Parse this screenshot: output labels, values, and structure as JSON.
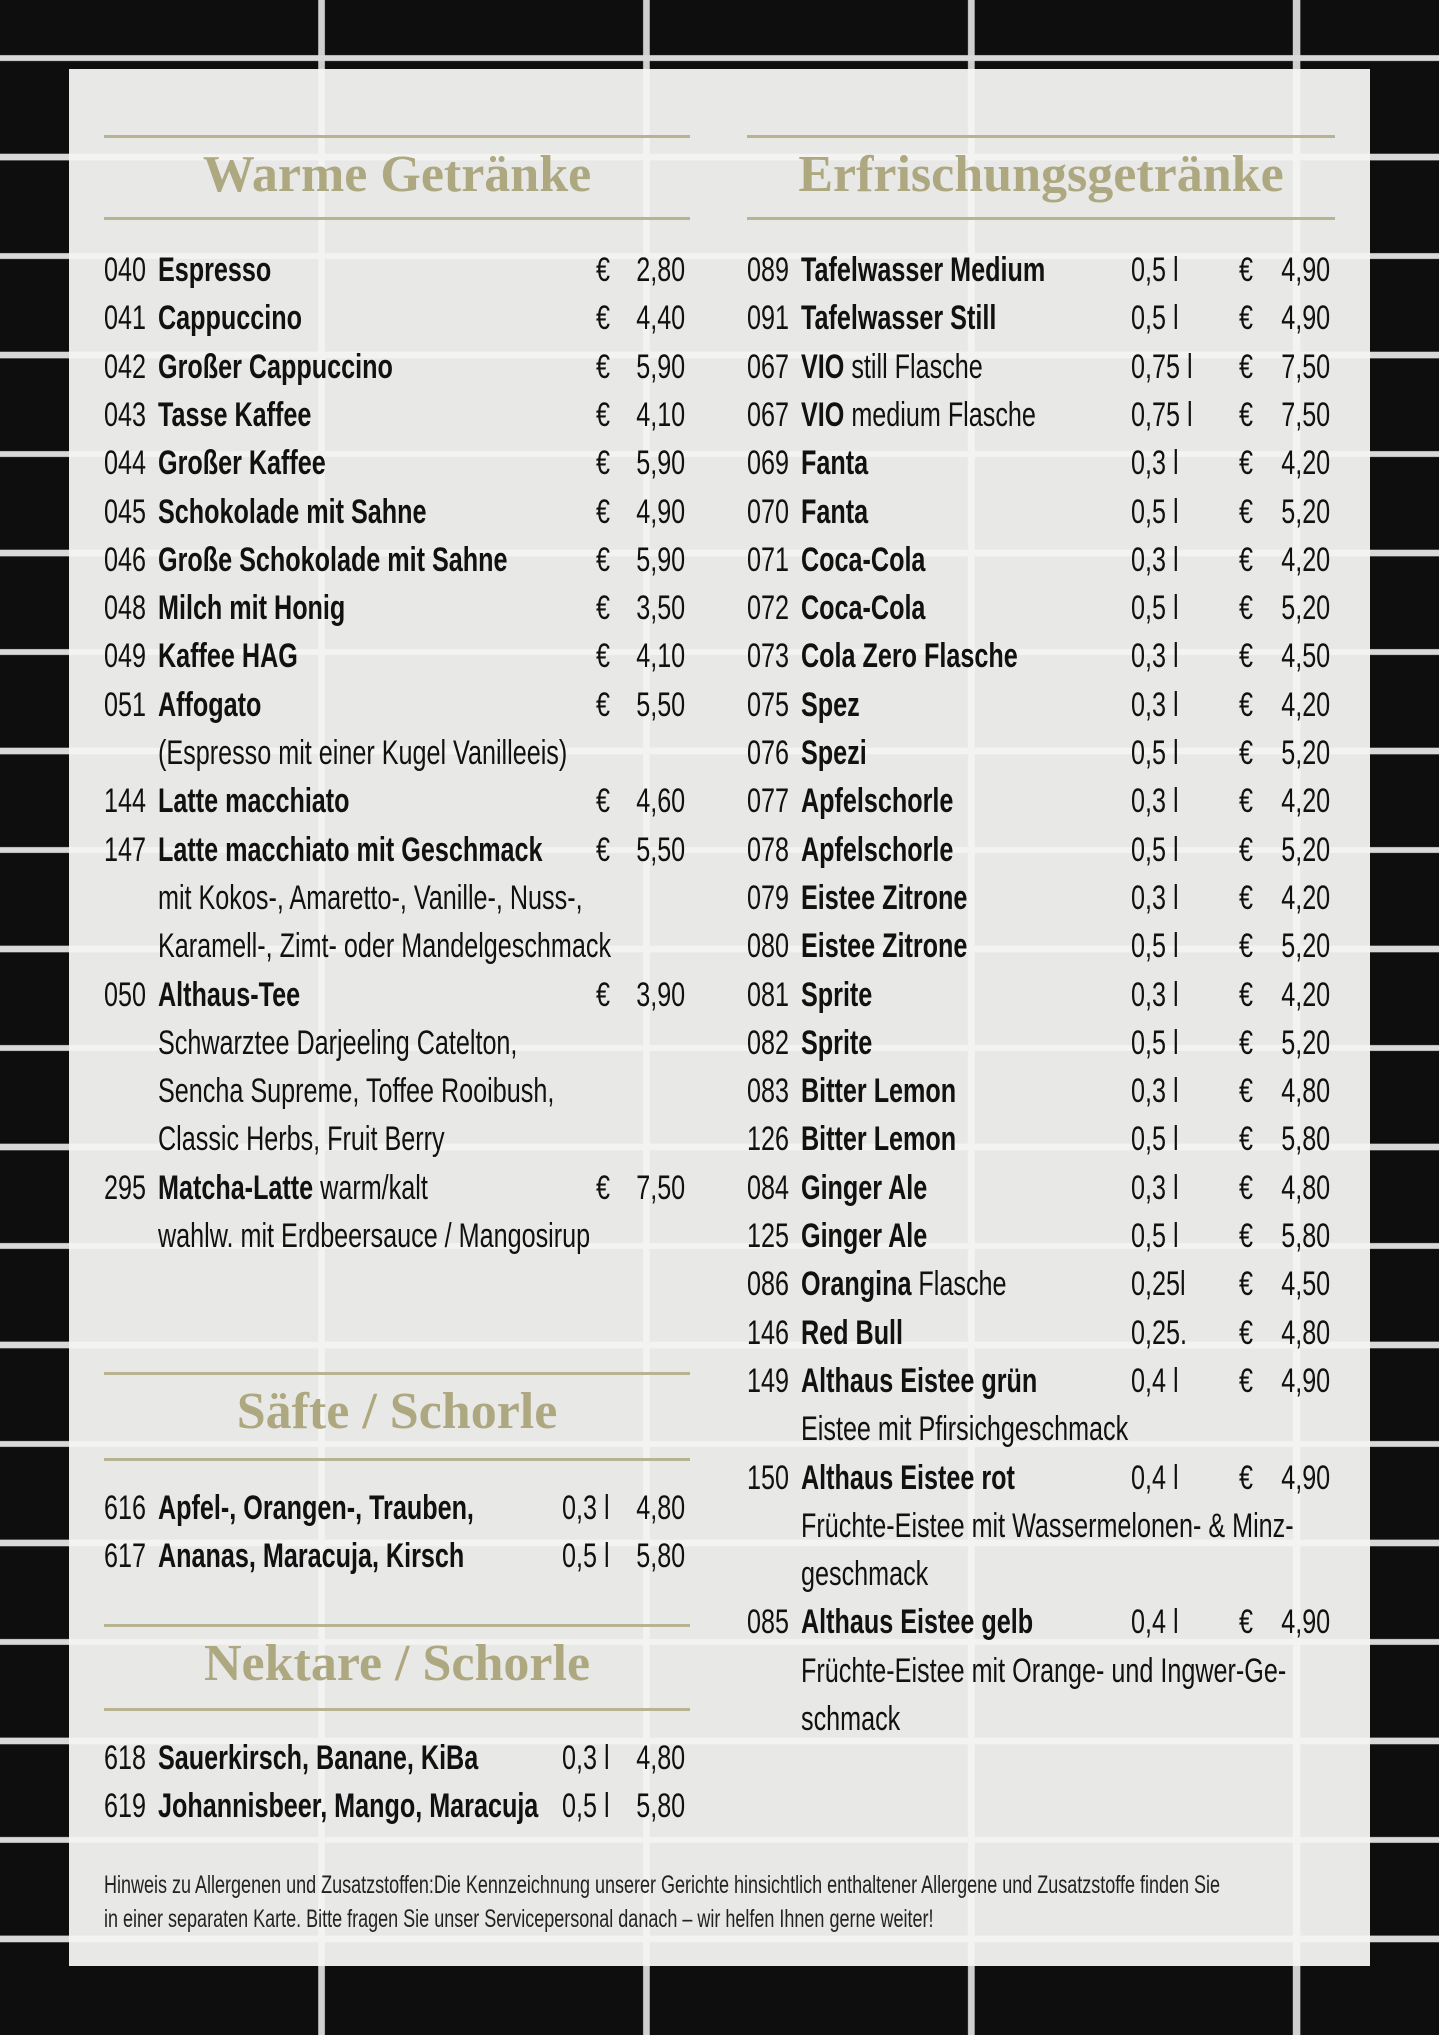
{
  "sections": {
    "warm": {
      "title": "Warme Getränke",
      "currency": "€",
      "items": [
        {
          "code": "040",
          "name": "Espresso",
          "price": "2,80"
        },
        {
          "code": "041",
          "name": "Cappuccino",
          "price": "4,40"
        },
        {
          "code": "042",
          "name": "Großer Cappuccino",
          "price": "5,90"
        },
        {
          "code": "043",
          "name": "Tasse Kaffee",
          "price": "4,10"
        },
        {
          "code": "044",
          "name": "Großer Kaffee",
          "price": "5,90"
        },
        {
          "code": "045",
          "name": "Schokolade mit Sahne",
          "price": "4,90"
        },
        {
          "code": "046",
          "name": "Große Schokolade mit Sahne",
          "price": "5,90"
        },
        {
          "code": "048",
          "name": "Milch mit Honig",
          "price": "3,50"
        },
        {
          "code": "049",
          "name": "Kaffee HAG",
          "price": "4,10"
        },
        {
          "code": "051",
          "name": "Affogato",
          "price": "5,50",
          "desc": [
            "(Espresso mit einer Kugel Vanilleeis)"
          ]
        },
        {
          "code": "144",
          "name": "Latte macchiato",
          "price": "4,60"
        },
        {
          "code": "147",
          "name": "Latte macchiato mit Geschmack",
          "price": "5,50",
          "desc": [
            "mit  Kokos-, Amaretto-, Vanille-, Nuss-,",
            "Karamell-, Zimt- oder Mandelgeschmack"
          ]
        },
        {
          "code": "050",
          "name": "Althaus-Tee",
          "price": "3,90",
          "desc": [
            "Schwarztee Darjeeling Catelton,",
            "Sencha Supreme, Toffee Rooibush,",
            "Classic Herbs, Fruit Berry"
          ]
        },
        {
          "code": "295",
          "name": "Matcha-Latte",
          "extra": " warm/kalt",
          "price": "7,50",
          "desc": [
            "wahlw. mit Erdbeersauce / Mangosirup"
          ]
        }
      ]
    },
    "soft": {
      "title": "Erfrischungsgetränke",
      "currency": "€",
      "items": [
        {
          "code": "089",
          "name": "Tafelwasser Medium",
          "vol": "0,5 l",
          "price": "4,90"
        },
        {
          "code": "091",
          "name": "Tafelwasser Still",
          "vol": "0,5 l",
          "price": "4,90"
        },
        {
          "code": "067",
          "name": "VIO",
          "extra": " still Flasche",
          "vol": "0,75 l",
          "price": "7,50"
        },
        {
          "code": "067",
          "name": "VIO",
          "extra": " medium Flasche",
          "vol": "0,75 l",
          "price": "7,50"
        },
        {
          "code": "069",
          "name": "Fanta",
          "vol": "0,3 l",
          "price": "4,20"
        },
        {
          "code": "070",
          "name": "Fanta",
          "vol": "0,5 l",
          "price": "5,20"
        },
        {
          "code": "071",
          "name": "Coca-Cola",
          "vol": "0,3 l",
          "price": "4,20"
        },
        {
          "code": "072",
          "name": "Coca-Cola",
          "vol": "0,5 l",
          "price": "5,20"
        },
        {
          "code": "073",
          "name": "Cola Zero Flasche",
          "vol": "0,3 l",
          "price": "4,50"
        },
        {
          "code": "075",
          "name": "Spez",
          "vol": "0,3 l",
          "price": "4,20"
        },
        {
          "code": "076",
          "name": "Spezi",
          "vol": "0,5 l",
          "price": "5,20"
        },
        {
          "code": "077",
          "name": "Apfelschorle",
          "vol": "0,3 l",
          "price": "4,20"
        },
        {
          "code": "078",
          "name": "Apfelschorle",
          "vol": "0,5 l",
          "price": "5,20"
        },
        {
          "code": "079",
          "name": "Eistee Zitrone",
          "vol": "0,3 l",
          "price": "4,20"
        },
        {
          "code": "080",
          "name": "Eistee Zitrone",
          "vol": "0,5 l",
          "price": "5,20"
        },
        {
          "code": "081",
          "name": "Sprite",
          "vol": "0,3 l",
          "price": "4,20"
        },
        {
          "code": "082",
          "name": "Sprite",
          "vol": "0,5 l",
          "price": "5,20"
        },
        {
          "code": "083",
          "name": "Bitter Lemon",
          "vol": "0,3 l",
          "price": "4,80"
        },
        {
          "code": "126",
          "name": "Bitter Lemon",
          "vol": "0,5 l",
          "price": "5,80"
        },
        {
          "code": "084",
          "name": "Ginger Ale",
          "vol": "0,3 l",
          "price": "4,80"
        },
        {
          "code": "125",
          "name": "Ginger Ale",
          "vol": "0,5 l",
          "price": "5,80"
        },
        {
          "code": "086",
          "name": "Orangina",
          "extra": " Flasche",
          "vol": "0,25l",
          "price": "4,50"
        },
        {
          "code": "146",
          "name": "Red Bull",
          "vol": "0,25.",
          "price": "4,80"
        },
        {
          "code": "149",
          "name": "Althaus Eistee grün",
          "vol": "0,4 l",
          "price": "4,90",
          "desc": [
            "Eistee mit Pfirsichgeschmack"
          ]
        },
        {
          "code": "150",
          "name": "Althaus Eistee rot",
          "vol": "0,4 l",
          "price": "4,90",
          "desc": [
            "Früchte-Eistee mit Wassermelonen- & Minz-",
            "geschmack"
          ]
        },
        {
          "code": "085",
          "name": "Althaus Eistee gelb",
          "vol": "0,4 l",
          "price": "4,90",
          "desc": [
            "Früchte-Eistee mit Orange- und Ingwer-Ge-",
            "schmack"
          ]
        }
      ]
    },
    "juice": {
      "title": "Säfte / Schorle",
      "items": [
        {
          "code": "616",
          "name": "Apfel-, Orangen-, Trauben,",
          "vol": "0,3 l",
          "price": "4,80"
        },
        {
          "code": "617",
          "name": "Ananas, Maracuja, Kirsch",
          "vol": "0,5 l",
          "price": "5,80"
        }
      ]
    },
    "nectar": {
      "title": "Nektare / Schorle",
      "items": [
        {
          "code": "618",
          "name": "Sauerkirsch, Banane, KiBa",
          "vol": "0,3 l",
          "price": "4,80"
        },
        {
          "code": "619",
          "name": "Johannisbeer, Mango, Maracuja",
          "vol": "0,5 l",
          "price": "5,80"
        }
      ]
    }
  },
  "footer": {
    "line1": "Hinweis zu Allergenen und Zusatzstoffen:Die Kennzeichnung unserer Gerichte hinsichtlich enthaltener Allergene und Zusatzstoffe finden Sie",
    "line2": "in einer separaten Karte. Bitte fragen Sie unser Servicepersonal danach – wir helfen Ihnen gerne weiter!"
  },
  "colors": {
    "heading": "#aea880",
    "rule": "#b8b391",
    "text": "#111111",
    "tiles": "#0e0e0e"
  }
}
